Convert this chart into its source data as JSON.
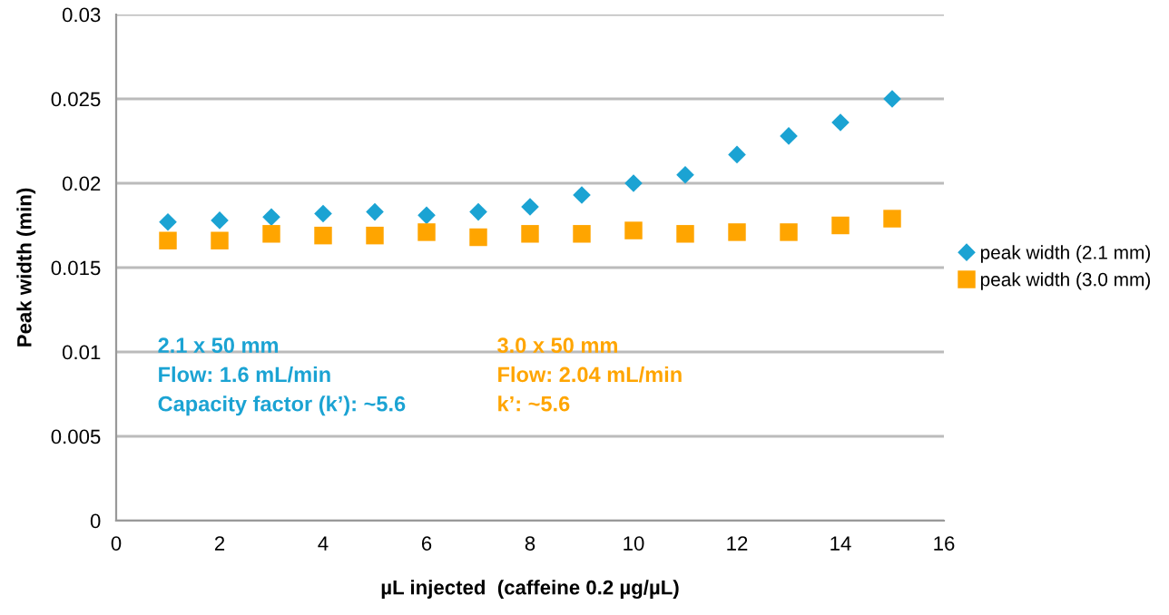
{
  "chart_data": {
    "type": "scatter",
    "xlabel": "µL injected  (caffeine 0.2 µg/µL)",
    "ylabel": "Peak width (min)",
    "x": [
      1,
      2,
      3,
      4,
      5,
      6,
      7,
      8,
      9,
      10,
      11,
      12,
      13,
      14,
      15
    ],
    "series": [
      {
        "name": "peak width (2.1 mm)",
        "color": "#1ba3d3",
        "marker": "diamond",
        "values": [
          0.0177,
          0.0178,
          0.018,
          0.0182,
          0.0183,
          0.0181,
          0.0183,
          0.0186,
          0.0193,
          0.02,
          0.0205,
          0.0217,
          0.0228,
          0.0236,
          0.025
        ]
      },
      {
        "name": "peak width (3.0 mm)",
        "color": "#ffa500",
        "marker": "square",
        "values": [
          0.0166,
          0.0166,
          0.017,
          0.0169,
          0.0169,
          0.0171,
          0.0168,
          0.017,
          0.017,
          0.0172,
          0.017,
          0.0171,
          0.0171,
          0.0175,
          0.0179
        ]
      }
    ],
    "annotations": [
      "2.1 x 50 mm\nFlow: 1.6 mL/min\nCapacity factor (k’): ~5.6",
      "3.0 x 50 mm\nFlow: 2.04 mL/min\nk’: ~5.6"
    ],
    "xlim": [
      0,
      16
    ],
    "xticks": [
      0,
      2,
      4,
      6,
      8,
      10,
      12,
      14,
      16
    ],
    "ylim": [
      0,
      0.03
    ],
    "yticks": [
      0,
      0.005,
      0.01,
      0.015,
      0.02,
      0.025,
      0.03
    ],
    "grid": "y",
    "legend": "right"
  }
}
